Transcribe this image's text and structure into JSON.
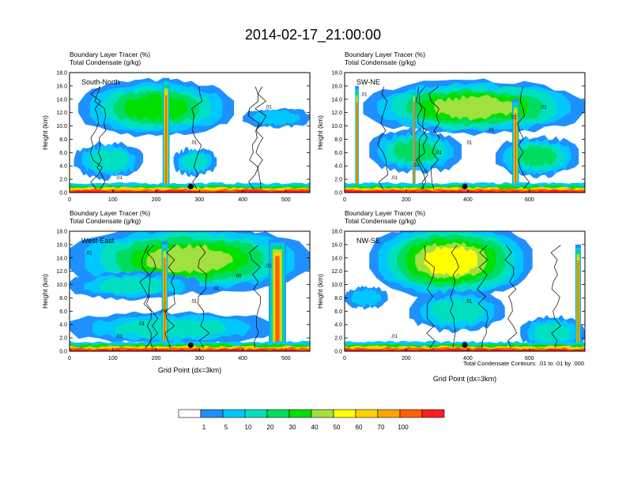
{
  "title": "2014-02-17_21:00:00",
  "footnote": "Total Condensate Contours: .01 to .01 by .000",
  "chart_data": [
    {
      "type": "heatmap",
      "header_lines": [
        "Boundary Layer Tracer    (%)",
        "Total Condensate    (g/kg)"
      ],
      "label": "South-North",
      "ylabel": "Height (km)",
      "xlabel": "",
      "ylim": [
        0,
        18
      ],
      "xlim": [
        0,
        555
      ],
      "yticks": [
        "0.0",
        "2.0",
        "4.0",
        "6.0",
        "8.0",
        "10.0",
        "12.0",
        "14.0",
        "16.0",
        "18.0"
      ],
      "xticks": [
        "0",
        "100",
        "200",
        "300",
        "400",
        "500"
      ],
      "contour_labels": [
        ".01",
        ".01",
        ".01"
      ]
    },
    {
      "type": "heatmap",
      "header_lines": [
        "Boundary Layer Tracer    (%)",
        "Total Condensate    (g/kg)"
      ],
      "label": "SW-NE",
      "ylabel": "Height (km)",
      "xlabel": "",
      "ylim": [
        0,
        18
      ],
      "xlim": [
        0,
        780
      ],
      "yticks": [
        "0.0",
        "2.0",
        "4.0",
        "6.0",
        "8.0",
        "10.0",
        "12.0",
        "14.0",
        "16.0",
        "18.0"
      ],
      "xticks": [
        "0",
        "200",
        "400",
        "600"
      ],
      "contour_labels": [
        ".01",
        ".01",
        ".01",
        ".01",
        ".01",
        ".01",
        ".01",
        ".01"
      ]
    },
    {
      "type": "heatmap",
      "header_lines": [
        "Boundary Layer Tracer    (%)",
        "Total Condensate    (g/kg)"
      ],
      "label": "West-East",
      "ylabel": "Height (km)",
      "xlabel": "Grid Point (dx=3km)",
      "ylim": [
        0,
        18
      ],
      "xlim": [
        0,
        555
      ],
      "yticks": [
        "0.0",
        "2.0",
        "4.0",
        "6.0",
        "8.0",
        "10.0",
        "12.0",
        "14.0",
        "16.0",
        "18.0"
      ],
      "xticks": [
        "0",
        "100",
        "200",
        "300",
        "400",
        "500"
      ],
      "contour_labels": [
        ".01",
        ".01",
        ".01",
        ".01",
        ".01",
        ".01",
        ".00",
        ".00"
      ]
    },
    {
      "type": "heatmap",
      "header_lines": [
        "Boundary Layer Tracer    (%)",
        "Total Condensate    (g/kg)"
      ],
      "label": "NW-SE",
      "ylabel": "Height (km)",
      "xlabel": "Grid Point (dx=3km)",
      "ylim": [
        0,
        18
      ],
      "xlim": [
        0,
        780
      ],
      "yticks": [
        "0.0",
        "2.0",
        "4.0",
        "6.0",
        "8.0",
        "10.0",
        "12.0",
        "14.0",
        "16.0",
        "18.0"
      ],
      "xticks": [
        "0",
        "200",
        "400",
        "600"
      ],
      "contour_labels": [
        ".01",
        ".01"
      ]
    }
  ],
  "colorbar": {
    "labels": [
      "1",
      "5",
      "10",
      "20",
      "30",
      "40",
      "50",
      "60",
      "70",
      "100"
    ],
    "colors": [
      "#ffffff",
      "#1e90ff",
      "#00c8ff",
      "#00e0c0",
      "#00dc60",
      "#00e000",
      "#a0e040",
      "#ffff00",
      "#ffd200",
      "#ffa500",
      "#ff6000",
      "#ff1e1e"
    ]
  }
}
